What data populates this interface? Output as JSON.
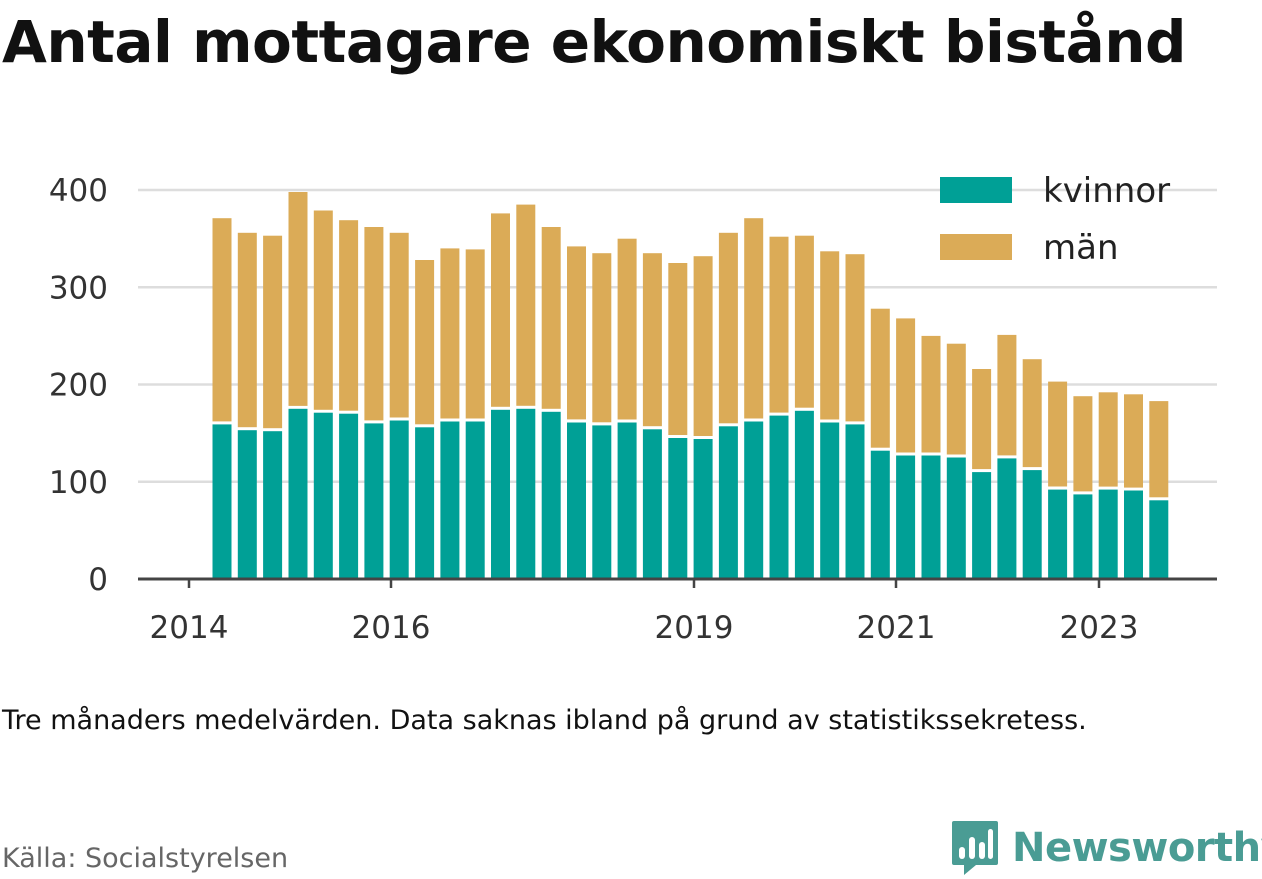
{
  "title": "Antal mottagare ekonomiskt bistånd",
  "note": "Tre månaders medelvärden. Data saknas ibland på grund av statistikssekretess.",
  "source": "Källa: Socialstyrelsen",
  "brand": {
    "name": "Newsworthy",
    "color": "#4a9c94",
    "icon": "bar-chart-logo-icon"
  },
  "colors": {
    "kvinnor": "#00a096",
    "man": "#dbab57",
    "grid": "#dddddd",
    "axis": "#444444"
  },
  "chart_data": {
    "type": "bar",
    "stacked": true,
    "grid": true,
    "legend_position": "top-right",
    "ylim": [
      0,
      400
    ],
    "yticks": [
      0,
      100,
      200,
      300,
      400
    ],
    "xticks": [
      "2014",
      "2016",
      "2019",
      "2021",
      "2023"
    ],
    "series": [
      {
        "name": "kvinnor",
        "values": [
          160,
          154,
          153,
          176,
          172,
          171,
          161,
          164,
          157,
          163,
          163,
          175,
          176,
          173,
          162,
          159,
          162,
          155,
          146,
          145,
          158,
          163,
          169,
          174,
          162,
          160,
          133,
          128,
          128,
          126,
          111,
          125,
          113,
          93,
          88,
          93,
          92,
          82
        ]
      },
      {
        "name": "män",
        "values": [
          212,
          203,
          201,
          223,
          208,
          199,
          202,
          193,
          172,
          178,
          177,
          202,
          210,
          190,
          181,
          177,
          189,
          181,
          180,
          188,
          199,
          209,
          184,
          180,
          176,
          175,
          146,
          141,
          123,
          117,
          106,
          127,
          114,
          111,
          101,
          100,
          99,
          102
        ]
      }
    ]
  }
}
